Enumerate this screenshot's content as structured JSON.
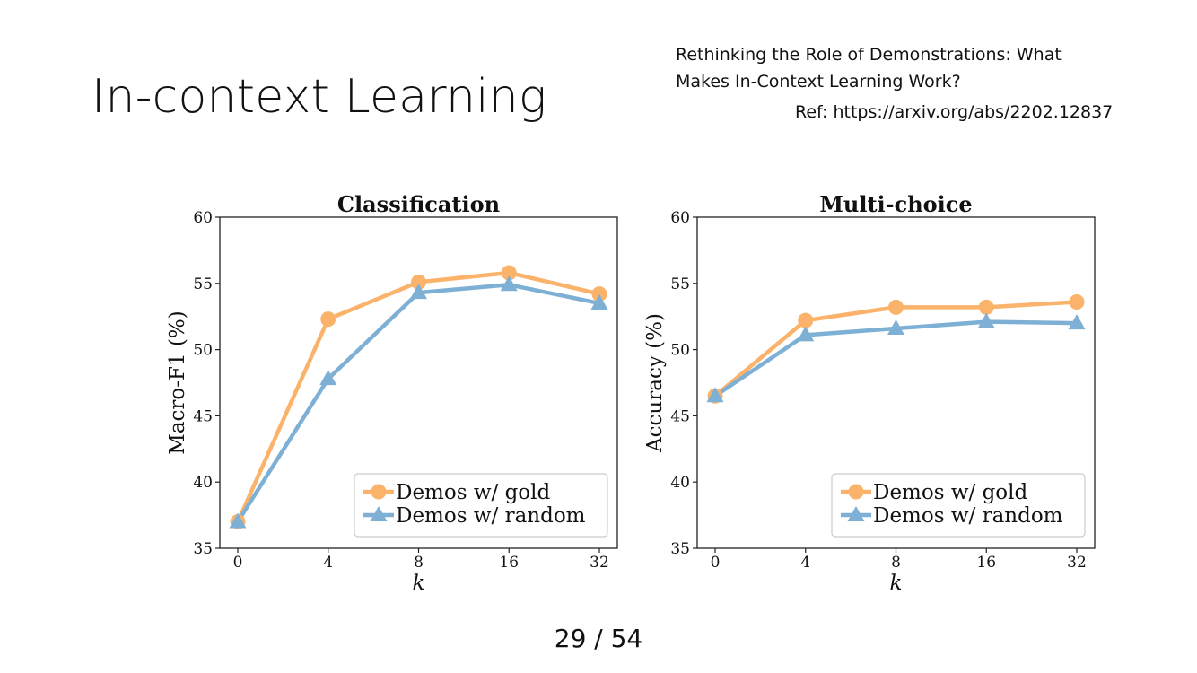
{
  "slide": {
    "title": "In-context Learning",
    "reference_line1": "Rethinking the Role of Demonstrations: What",
    "reference_line2": "Makes In-Context Learning Work?",
    "reference_url": "Ref: https://arxiv.org/abs/2202.12837",
    "page_number": "29 / 54"
  },
  "colors": {
    "gold": "#fbb26a",
    "random": "#7eb0d5"
  },
  "chart_data": [
    {
      "type": "line",
      "title": "Classification",
      "xlabel": "k",
      "ylabel": "Macro-F1 (%)",
      "categories": [
        "0",
        "4",
        "8",
        "16",
        "32"
      ],
      "ylim": [
        35,
        60
      ],
      "yticks": [
        35,
        40,
        45,
        50,
        55,
        60
      ],
      "grid": false,
      "legend_position": "bottom-right",
      "series": [
        {
          "name": "Demos w/ gold",
          "marker": "circle",
          "color": "#fbb26a",
          "values": [
            37.0,
            52.3,
            55.1,
            55.8,
            54.2
          ]
        },
        {
          "name": "Demos w/ random",
          "marker": "triangle",
          "color": "#7eb0d5",
          "values": [
            37.0,
            47.8,
            54.3,
            54.9,
            53.5
          ]
        }
      ]
    },
    {
      "type": "line",
      "title": "Multi-choice",
      "xlabel": "k",
      "ylabel": "Accuracy (%)",
      "categories": [
        "0",
        "4",
        "8",
        "16",
        "32"
      ],
      "ylim": [
        35,
        60
      ],
      "yticks": [
        35,
        40,
        45,
        50,
        55,
        60
      ],
      "grid": false,
      "legend_position": "bottom-right",
      "series": [
        {
          "name": "Demos w/ gold",
          "marker": "circle",
          "color": "#fbb26a",
          "values": [
            46.5,
            52.2,
            53.2,
            53.2,
            53.6
          ]
        },
        {
          "name": "Demos w/ random",
          "marker": "triangle",
          "color": "#7eb0d5",
          "values": [
            46.5,
            51.1,
            51.6,
            52.1,
            52.0
          ]
        }
      ]
    }
  ]
}
